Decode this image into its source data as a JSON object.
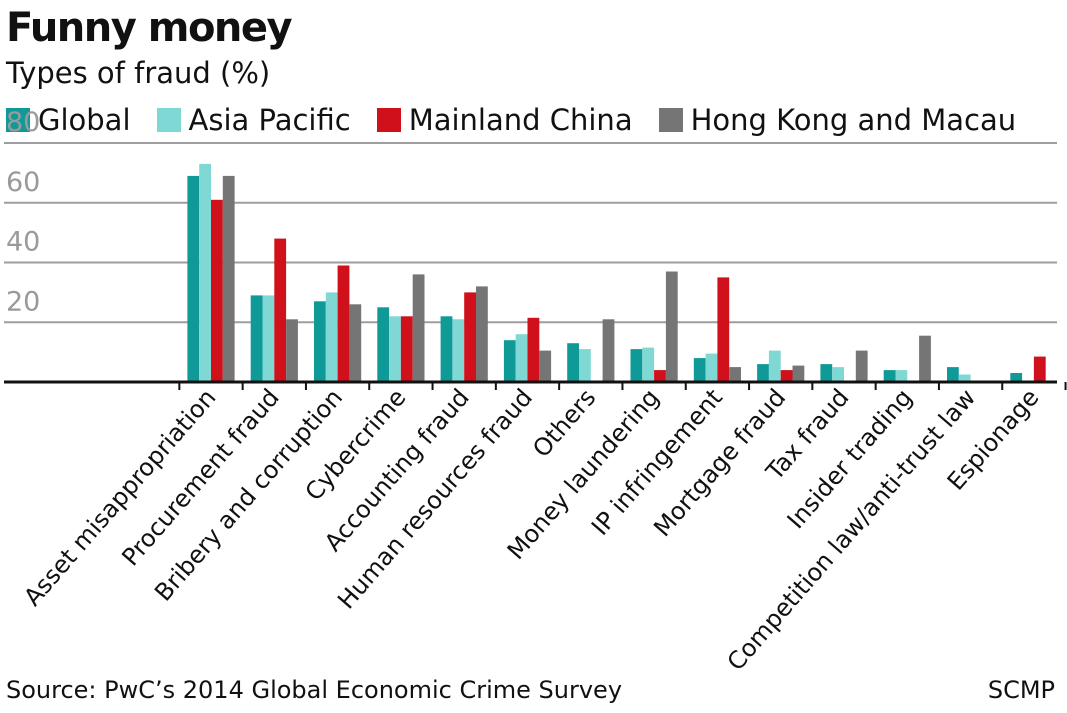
{
  "header": {
    "title": "Funny money",
    "subtitle": "Types of fraud (%)"
  },
  "footer": {
    "source": "Source: PwC’s 2014 Global Economic Crime Survey",
    "brand": "SCMP"
  },
  "chart_data": {
    "type": "bar",
    "title": "Funny money",
    "subtitle": "Types of fraud (%)",
    "ylim": [
      0,
      80
    ],
    "yticks": [
      20,
      40,
      60,
      80
    ],
    "grid": true,
    "legend_position": "top",
    "categories": [
      "Asset misappropriation",
      "Procurement fraud",
      "Bribery and corruption",
      "Cybercrime",
      "Accounting fraud",
      "Human resources fraud",
      "Others",
      "Money laundering",
      "IP infringement",
      "Mortgage fraud",
      "Tax fraud",
      "Insider trading",
      "Competition law/anti-trust law",
      "Espionage"
    ],
    "series": [
      {
        "name": "Global",
        "color": "#0f9a98",
        "values": [
          69,
          29,
          27,
          25,
          22,
          14,
          13,
          11,
          8,
          6,
          6,
          4,
          5,
          3
        ]
      },
      {
        "name": "Asia Pacific",
        "color": "#7fd8d4",
        "values": [
          73,
          29,
          30,
          22,
          21,
          16,
          11,
          11.5,
          9.5,
          10.5,
          5,
          4,
          2.5,
          0
        ]
      },
      {
        "name": "Mainland China",
        "color": "#d0101a",
        "values": [
          61,
          48,
          39,
          22,
          30,
          21.5,
          0,
          4,
          35,
          4,
          0,
          0,
          0,
          8.5
        ]
      },
      {
        "name": "Hong Kong and Macau",
        "color": "#757575",
        "values": [
          69,
          21,
          26,
          36,
          32,
          10.5,
          21,
          37,
          5,
          5.5,
          10.5,
          15.5,
          0,
          0
        ]
      }
    ]
  }
}
